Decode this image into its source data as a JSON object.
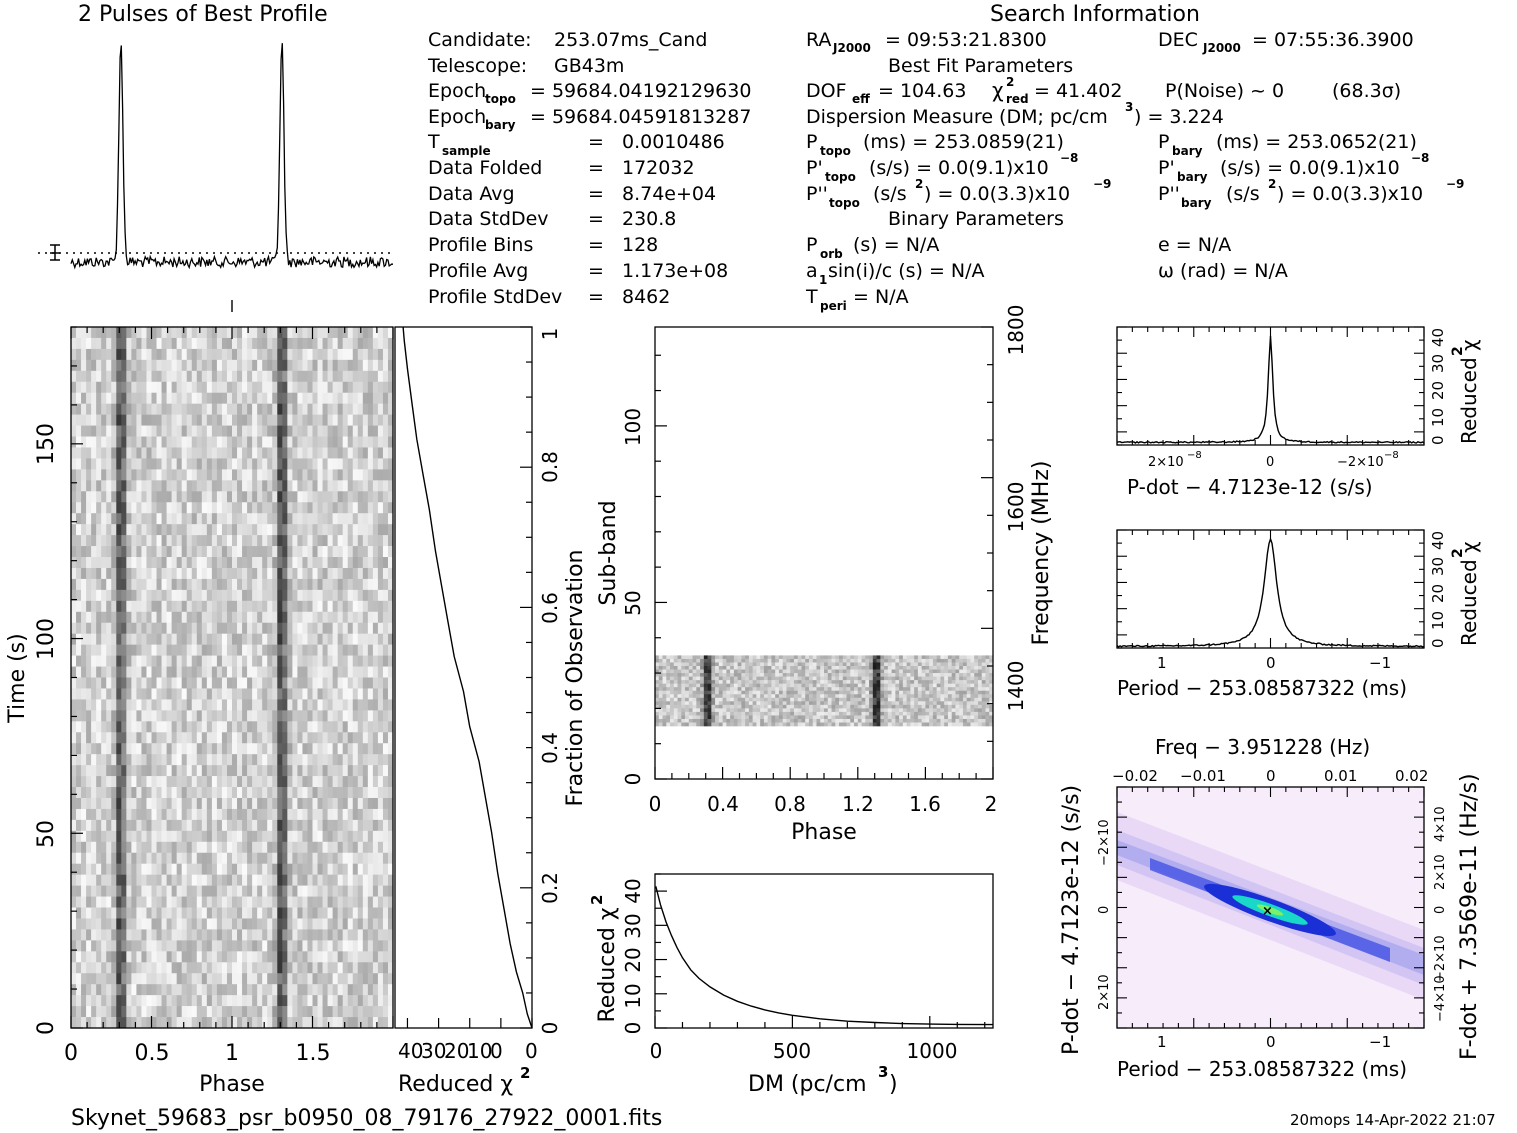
{
  "title": "2 Pulses of Best Profile",
  "search_heading": "Search Information",
  "best_fit_heading": "Best Fit Parameters",
  "binary_heading": "Binary Parameters",
  "candidate": {
    "label": "Candidate:",
    "value": "253.07ms_Cand"
  },
  "telescope": {
    "label": "Telescope:",
    "value": "GB43m"
  },
  "epoch_topo": {
    "label": "Epoch",
    "sub": "topo",
    "value": "= 59684.04192129630"
  },
  "epoch_bary": {
    "label": "Epoch",
    "sub": "bary",
    "value": "= 59684.04591813287"
  },
  "t_sample": {
    "label": "T",
    "sub": "sample",
    "value": "0.0010486"
  },
  "data_folded": {
    "label": "Data Folded",
    "value": "172032"
  },
  "data_avg": {
    "label": "Data Avg",
    "value": "8.74e+04"
  },
  "data_stddev": {
    "label": "Data StdDev",
    "value": "230.8"
  },
  "profile_bins": {
    "label": "Profile Bins",
    "value": "128"
  },
  "profile_avg": {
    "label": "Profile Avg",
    "value": "1.173e+08"
  },
  "profile_stddev": {
    "label": "Profile StdDev",
    "value": "8462"
  },
  "equals": "=",
  "ra": {
    "label": "RA",
    "sub": "J2000",
    "value": "= 09:53:21.8300"
  },
  "dec": {
    "label": "DEC",
    "sub": "J2000",
    "value": "= 07:55:36.3900"
  },
  "dof": {
    "label": "DOF",
    "sub": "eff",
    "value": "= 104.63"
  },
  "chi2": {
    "label": "χ",
    "sup": "2",
    "sub": "red",
    "value": "= 41.402"
  },
  "pnoise": {
    "text": "P(Noise) ~ 0",
    "sigma": "(68.3σ)"
  },
  "dm": {
    "text": "Dispersion Measure (DM; pc/cm",
    "sup": "3",
    "tail": ") = 3.224"
  },
  "p_topo": {
    "label": "P",
    "sub": "topo",
    "value": "(ms) =  253.0859(21)"
  },
  "p_bary": {
    "label": "P",
    "sub": "bary",
    "value": "(ms) =  253.0652(21)"
  },
  "pd_topo": {
    "label": "P'",
    "sub": "topo",
    "value": "(s/s) = 0.0(9.1)x10",
    "sup": "−8"
  },
  "pd_bary": {
    "label": "P'",
    "sub": "bary",
    "value": "(s/s) = 0.0(9.1)x10",
    "sup": "−8"
  },
  "pdd_topo": {
    "label": "P''",
    "sub": "topo",
    "value": "(s/s",
    "sup1": "2",
    "value2": ") = 0.0(3.3)x10",
    "sup": "−9"
  },
  "pdd_bary": {
    "label": "P''",
    "sub": "bary",
    "value": "(s/s",
    "sup1": "2",
    "value2": ") = 0.0(3.3)x10",
    "sup": "−9"
  },
  "porb": {
    "label": "P",
    "sub": "orb",
    "value": "(s) = N/A"
  },
  "asini": {
    "label": "a",
    "sub": "1",
    "value": "sin(i)/c (s) = N/A"
  },
  "tperi": {
    "label": "T",
    "sub": "peri",
    "value": "= N/A"
  },
  "ecc": {
    "value": "e = N/A"
  },
  "omega": {
    "value": "ω (rad) = N/A"
  },
  "filename": "Skynet_59683_psr_b0950_08_79176_27922_0001.fits",
  "footer_stamp": "20mops 14-Apr-2022 21:07",
  "colors": {
    "greyscale_dark": "#1a1a1a",
    "ppdot_base": "#f4e3f8",
    "ppdot_mid": "#1b2fd6",
    "ppdot_peak": "#19d8c8"
  },
  "chart_data": [
    {
      "id": "profile",
      "type": "line",
      "title": "2 Pulses of Best Profile",
      "x": [
        0,
        2
      ],
      "peaks_phase": [
        0.31,
        1.31
      ],
      "note_marker": "1σ error bar at left, dotted mean line"
    },
    {
      "id": "time_phase",
      "type": "heatmap",
      "xlabel": "Phase",
      "ylabel": "Time (s)",
      "xlim": [
        0,
        2
      ],
      "ylim": [
        0,
        180
      ],
      "x_ticks": [
        "0",
        "0.5",
        "1",
        "1.5"
      ],
      "y_ticks": [
        "0",
        "50",
        "100",
        "150"
      ],
      "pulse_phase": [
        0.31,
        1.31
      ]
    },
    {
      "id": "chi2_vs_time",
      "type": "line",
      "xlabel": "Reduced χ",
      "xlabel_sup": "2",
      "ylabel": "Fraction of Observation",
      "x_ticks": [
        "40",
        "30",
        "20",
        "10",
        "0"
      ],
      "y_ticks": [
        "0",
        "0.2",
        "0.4",
        "0.6",
        "0.8",
        "1"
      ],
      "points": [
        [
          0,
          0
        ],
        [
          1.5,
          0.02
        ],
        [
          3,
          0.05
        ],
        [
          5,
          0.08
        ],
        [
          7,
          0.12
        ],
        [
          9,
          0.17
        ],
        [
          11,
          0.22
        ],
        [
          13,
          0.28
        ],
        [
          15,
          0.33
        ],
        [
          17,
          0.38
        ],
        [
          20,
          0.43
        ],
        [
          22,
          0.48
        ],
        [
          25,
          0.53
        ],
        [
          27,
          0.58
        ],
        [
          29,
          0.63
        ],
        [
          31,
          0.68
        ],
        [
          33,
          0.74
        ],
        [
          35,
          0.79
        ],
        [
          37,
          0.84
        ],
        [
          38.5,
          0.89
        ],
        [
          40,
          0.94
        ],
        [
          41,
          0.98
        ],
        [
          41.4,
          1.0
        ]
      ]
    },
    {
      "id": "subband_phase",
      "type": "heatmap",
      "xlabel": "Phase",
      "ylabel": "Sub-band",
      "y2label": "Frequency (MHz)",
      "xlim": [
        0,
        2
      ],
      "ylim": [
        0,
        128
      ],
      "x_ticks": [
        "0",
        "0.4",
        "0.8",
        "1.2",
        "1.6",
        "2"
      ],
      "y_ticks": [
        "0",
        "50",
        "100"
      ],
      "y2_ticks": [
        "1400",
        "1600",
        "1800"
      ],
      "band_subbands": [
        15,
        35
      ],
      "pulse_phase": [
        0.31,
        1.31
      ]
    },
    {
      "id": "dm_chi2",
      "type": "line",
      "xlabel": "DM (pc/cm",
      "xlabel_sup": "3",
      "xlabel_tail": ")",
      "ylabel": "Reduced χ",
      "ylabel_sup": "2",
      "xlim": [
        0,
        1230
      ],
      "ylim": [
        0,
        45
      ],
      "x_ticks": [
        "0",
        "500",
        "1000"
      ],
      "y_ticks": [
        "0",
        "10",
        "20",
        "30",
        "40"
      ],
      "points": [
        [
          3,
          41.4
        ],
        [
          20,
          36
        ],
        [
          40,
          31
        ],
        [
          60,
          27
        ],
        [
          80,
          23.5
        ],
        [
          100,
          20.5
        ],
        [
          130,
          17
        ],
        [
          160,
          14.5
        ],
        [
          200,
          12
        ],
        [
          250,
          9.6
        ],
        [
          300,
          7.8
        ],
        [
          350,
          6.4
        ],
        [
          400,
          5.3
        ],
        [
          450,
          4.4
        ],
        [
          500,
          3.7
        ],
        [
          600,
          2.7
        ],
        [
          700,
          2.0
        ],
        [
          800,
          1.6
        ],
        [
          900,
          1.3
        ],
        [
          1000,
          1.15
        ],
        [
          1100,
          1.05
        ],
        [
          1230,
          1.0
        ]
      ]
    },
    {
      "id": "pdot_chi2",
      "type": "line",
      "xlabel": "P-dot − 4.7123e-12 (s/s)",
      "ylabel": "Reduced χ",
      "ylabel_sup": "2",
      "x_tick_labels": [
        "2×10",
        "0",
        "−2×10"
      ],
      "x_tick_exp": "−8",
      "y_ticks": [
        "0",
        "10",
        "20",
        "30",
        "40"
      ]
    },
    {
      "id": "period_chi2",
      "type": "line",
      "xlabel": "Period − 253.08587322 (ms)",
      "ylabel": "Reduced χ",
      "ylabel_sup": "2",
      "x_ticks": [
        "1",
        "0",
        "−1"
      ],
      "y_ticks": [
        "0",
        "10",
        "20",
        "30",
        "40"
      ]
    },
    {
      "id": "p_pdot",
      "type": "heatmap",
      "title": "Freq − 3.951228 (Hz)",
      "xlabel": "Period − 253.08587322 (ms)",
      "ylabel": "P-dot − 4.7123e-12 (s/s)",
      "y2label": "F-dot + 7.3569e-11 (Hz/s)",
      "x_ticks": [
        "1",
        "0",
        "−1"
      ],
      "top_ticks": [
        "−0.02",
        "−0.01",
        "0",
        "0.01",
        "0.02"
      ],
      "y_tick_labels": [
        "−2×10",
        "0",
        "2×10"
      ],
      "y_tick_exp": "−8",
      "y2_tick_labels": [
        "4×10",
        "2×10",
        "0",
        "−2×10",
        "−4×10"
      ],
      "y2_tick_exp": "−4"
    }
  ]
}
